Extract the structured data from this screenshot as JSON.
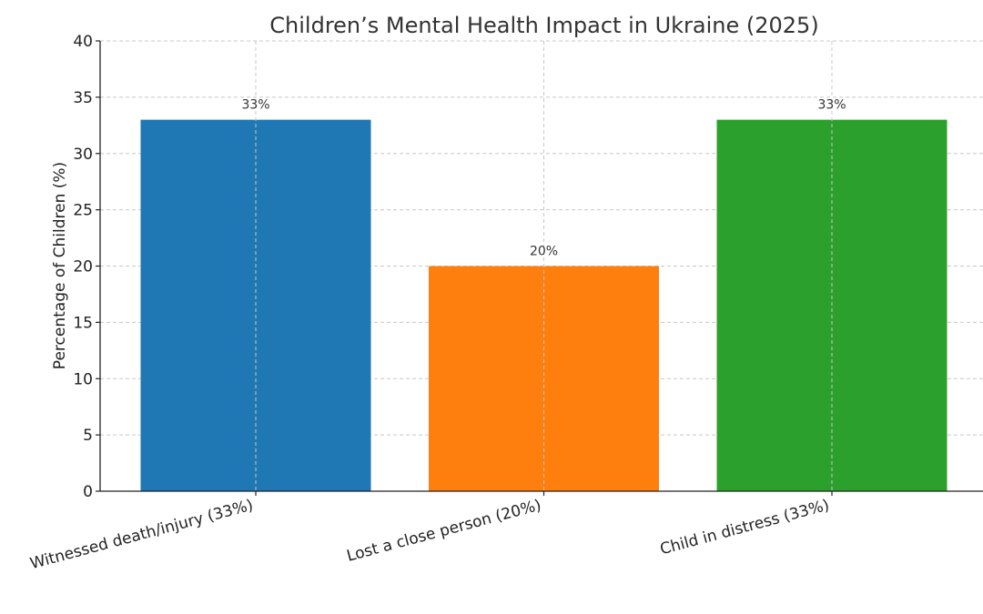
{
  "chart_data": {
    "type": "bar",
    "title": "Children’s Mental Health Impact in Ukraine (2025)",
    "xlabel": "",
    "ylabel": "Percentage of Children (%)",
    "ylim": [
      0,
      40
    ],
    "yticks": [
      0,
      5,
      10,
      15,
      20,
      25,
      30,
      35,
      40
    ],
    "grid": true,
    "categories": [
      "Witnessed death/injury (33%)",
      "Lost a close person (20%)",
      "Child in distress (33%)"
    ],
    "values": [
      33,
      20,
      33
    ],
    "value_labels": [
      "33%",
      "20%",
      "33%"
    ],
    "colors": [
      "#1f77b4",
      "#ff7f0e",
      "#2ca02c"
    ]
  }
}
